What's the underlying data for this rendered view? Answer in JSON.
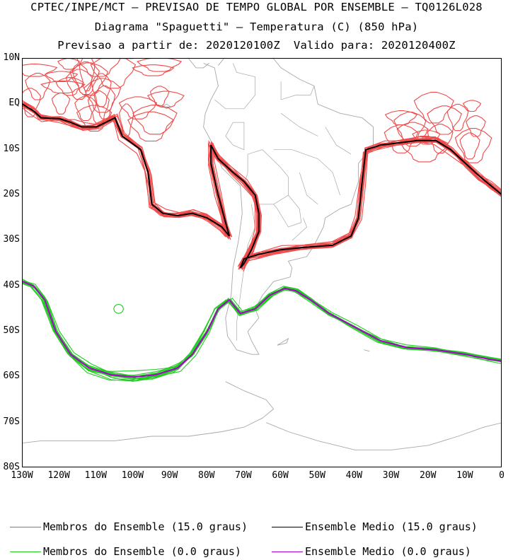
{
  "title": {
    "line1": "CPTEC/INPE/MCT – PREVISAO DE TEMPO GLOBAL POR ENSEMBLE – TQ0126L028",
    "line2": "Diagrama \"Spaguetti\" – Temperatura (C) (850 hPa)",
    "line3": "Previsao a partir de: 2020120100Z  Valido para: 2020120400Z"
  },
  "axes": {
    "y_ticks": [
      "10N",
      "EQ",
      "10S",
      "20S",
      "30S",
      "40S",
      "50S",
      "60S",
      "70S",
      "80S"
    ],
    "x_ticks": [
      "130W",
      "120W",
      "110W",
      "100W",
      "90W",
      "80W",
      "70W",
      "60W",
      "50W",
      "40W",
      "30W",
      "20W",
      "10W",
      "0"
    ],
    "lon_range": [
      -130,
      0
    ],
    "lat_range": [
      -80,
      10
    ]
  },
  "colors": {
    "member_15": "#f04a4a",
    "mean_15": "#000000",
    "member_0": "#22cc22",
    "mean_0": "#aa00cc",
    "coastline": "#a8a8a8"
  },
  "legend": {
    "member_15": "Membros do Ensemble (15.0 graus)",
    "mean_15": "Ensemble Medio (15.0 graus)",
    "member_0": "Membros do Ensemble (0.0 graus)",
    "mean_0": "Ensemble Medio (0.0 graus)"
  },
  "chart_data": {
    "type": "map-contour",
    "contours": [
      {
        "level": 15.0,
        "mean": [
          [
            -130,
            0
          ],
          [
            -127,
            -1.5
          ],
          [
            -125,
            -3
          ],
          [
            -120,
            -3.2
          ],
          [
            -117,
            -4
          ],
          [
            -114,
            -5
          ],
          [
            -110,
            -5
          ],
          [
            -105,
            -3
          ],
          [
            -103,
            -7
          ],
          [
            -98,
            -10
          ],
          [
            -96,
            -15
          ],
          [
            -95,
            -22
          ],
          [
            -92,
            -24
          ],
          [
            -88,
            -24.5
          ],
          [
            -84,
            -24
          ],
          [
            -80,
            -25
          ],
          [
            -76,
            -27
          ],
          [
            -74,
            -29
          ],
          [
            -75,
            -26
          ],
          [
            -77,
            -20
          ],
          [
            -79,
            -13
          ],
          [
            -79,
            -9
          ],
          [
            -77,
            -12
          ],
          [
            -73,
            -15
          ],
          [
            -70,
            -17
          ],
          [
            -67,
            -20
          ],
          [
            -66,
            -24
          ],
          [
            -66,
            -28
          ],
          [
            -68,
            -32
          ],
          [
            -70,
            -35
          ],
          [
            -71,
            -36
          ],
          [
            -70,
            -34
          ],
          [
            -66,
            -33
          ],
          [
            -60,
            -32
          ],
          [
            -54,
            -31.5
          ],
          [
            -46,
            -31
          ],
          [
            -41,
            -29
          ],
          [
            -39,
            -25
          ],
          [
            -38,
            -17
          ],
          [
            -37,
            -10
          ],
          [
            -33,
            -9
          ],
          [
            -28,
            -8.5
          ],
          [
            -23,
            -8
          ],
          [
            -18,
            -8
          ],
          [
            -14,
            -10
          ],
          [
            -10,
            -13
          ],
          [
            -6,
            -16
          ],
          [
            -3,
            -18
          ],
          [
            0,
            -20
          ]
        ]
      },
      {
        "level": 0.0,
        "mean": [
          [
            -130,
            -39
          ],
          [
            -127,
            -40
          ],
          [
            -124,
            -43
          ],
          [
            -121,
            -50
          ],
          [
            -117,
            -55
          ],
          [
            -112,
            -58
          ],
          [
            -106,
            -59.5
          ],
          [
            -100,
            -60
          ],
          [
            -94,
            -59.5
          ],
          [
            -88,
            -58
          ],
          [
            -84,
            -55
          ],
          [
            -80,
            -50
          ],
          [
            -77,
            -45
          ],
          [
            -74,
            -43
          ],
          [
            -71,
            -46
          ],
          [
            -67,
            -45
          ],
          [
            -63,
            -42
          ],
          [
            -59,
            -40.5
          ],
          [
            -56,
            -41
          ],
          [
            -52,
            -43
          ],
          [
            -47,
            -46
          ],
          [
            -40,
            -49
          ],
          [
            -33,
            -52
          ],
          [
            -26,
            -53.5
          ],
          [
            -18,
            -54
          ],
          [
            -10,
            -55
          ],
          [
            -4,
            -56
          ],
          [
            0,
            -56.5
          ]
        ]
      }
    ]
  }
}
